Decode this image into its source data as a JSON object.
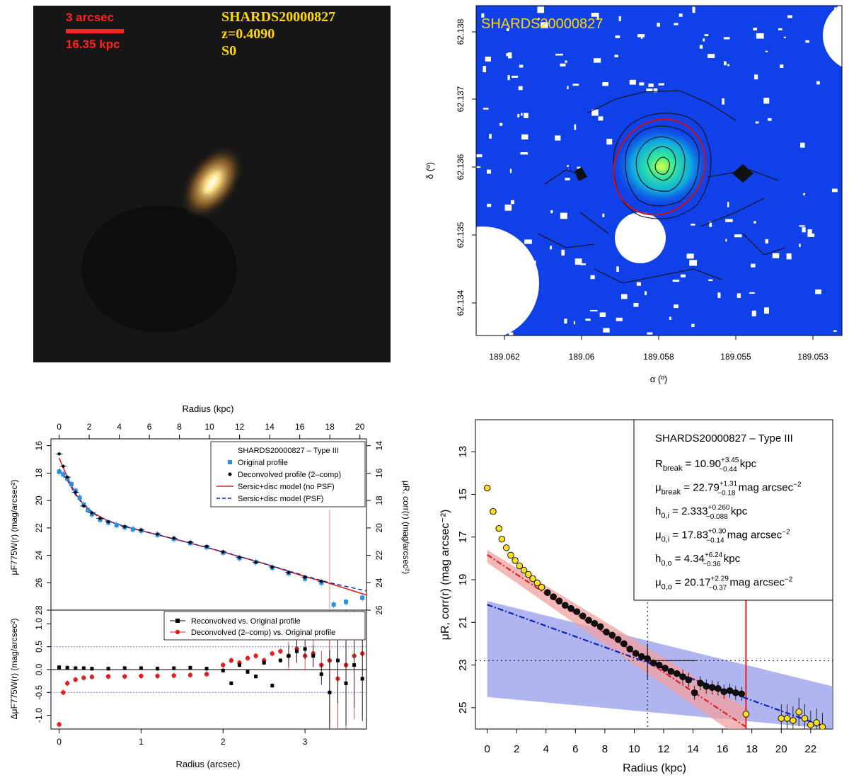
{
  "chart_data": [
    {
      "type": "image",
      "panel": "color-image",
      "scale_bar_label_1": "3 arcsec",
      "scale_bar_label_2": "16.35 kpc",
      "object_name": "SHARDS20000827",
      "redshift": "z=0.4090",
      "morph_type": "S0",
      "colors": {
        "background": "#141414",
        "scale": "#ff2020",
        "label": "#ffd700"
      }
    },
    {
      "type": "heatmap",
      "panel": "sky-map",
      "title": "SHARDS20000827",
      "xlabel": "α (º)",
      "ylabel": "δ (º)",
      "xticks": [
        "189.062",
        "189.06",
        "189.058",
        "189.055",
        "189.053"
      ],
      "yticks": [
        "62.138",
        "62.137",
        "62.136",
        "62.135",
        "62.134"
      ],
      "colors": {
        "background": "#1040e8",
        "ellipse": "#d01010"
      }
    },
    {
      "type": "scatter",
      "panel": "profile-residuals",
      "top_axis_label": "Radius (kpc)",
      "top_ticks": [
        "0",
        "2",
        "4",
        "6",
        "8",
        "10",
        "12",
        "14",
        "16",
        "18",
        "20"
      ],
      "xlabel": "Radius (arcsec)",
      "xticks": [
        "0",
        "1",
        "2",
        "3"
      ],
      "xlim": [
        -0.1,
        3.75
      ],
      "ylim_top": [
        28,
        15.5
      ],
      "ylim_bottom": [
        -1.3,
        1.3
      ],
      "ylabel_top": "μF775W(r) (mag/arcsec²)",
      "ylabel_right": "μR, corr(r) (mag/arcsec²)",
      "ylabel_bottom": "ΔμF775W(r) (mag/arcsec²)",
      "yticks_top": [
        "16",
        "18",
        "20",
        "22",
        "24",
        "26",
        "28"
      ],
      "yticks_right": [
        "14",
        "16",
        "18",
        "20",
        "22",
        "24",
        "26"
      ],
      "yticks_bottom": [
        "1.0",
        "0.5",
        "0.0",
        "-0.5",
        "-1.0"
      ],
      "legend_top": {
        "title": "SHARDS20000827  –  Type III",
        "items": [
          "Original profile",
          "Deconvolved profile (2–comp)",
          "Sersic+disc model (no PSF)",
          "Sersic+disc model (PSF)"
        ]
      },
      "legend_bottom": {
        "items": [
          "Reconvolved vs. Original profile",
          "Deconvolved (2–comp) vs. Original profile"
        ]
      },
      "break_radius_arcsec": 3.3,
      "series": [
        {
          "name": "Original profile",
          "x": [
            0,
            0.05,
            0.1,
            0.15,
            0.2,
            0.25,
            0.3,
            0.35,
            0.4,
            0.5,
            0.6,
            0.7,
            0.8,
            0.9,
            1.0,
            1.2,
            1.4,
            1.6,
            1.8,
            2.0,
            2.2,
            2.4,
            2.6,
            2.8,
            3.0,
            3.2,
            3.35,
            3.5,
            3.7
          ],
          "values": [
            17.9,
            18.1,
            18.4,
            18.8,
            19.3,
            19.8,
            20.3,
            20.7,
            21.0,
            21.4,
            21.6,
            21.8,
            21.95,
            22.1,
            22.2,
            22.5,
            22.8,
            23.1,
            23.4,
            23.8,
            24.2,
            24.5,
            24.9,
            25.3,
            25.7,
            26.0,
            27.6,
            27.4,
            27.1
          ]
        },
        {
          "name": "Deconvolved profile (2–comp)",
          "x": [
            0,
            0.05,
            0.1,
            0.2,
            0.3,
            0.4,
            0.5,
            0.6,
            0.8,
            1.0,
            1.2,
            1.4,
            1.6,
            1.8,
            2.0,
            2.2,
            2.4,
            2.6,
            2.8,
            3.0,
            3.2
          ],
          "values": [
            16.6,
            17.5,
            18.3,
            19.4,
            20.4,
            20.9,
            21.3,
            21.55,
            21.9,
            22.15,
            22.45,
            22.75,
            23.05,
            23.35,
            23.75,
            24.15,
            24.5,
            24.85,
            25.25,
            25.6,
            25.9
          ]
        },
        {
          "name": "Sersic+disc model (no PSF)",
          "x": [
            0,
            0.05,
            0.1,
            0.2,
            0.3,
            0.4,
            0.6,
            0.8,
            1.0,
            1.5,
            2.0,
            2.5,
            3.0,
            3.3,
            3.75
          ],
          "values": [
            16.9,
            17.6,
            18.3,
            19.5,
            20.3,
            20.85,
            21.5,
            21.9,
            22.2,
            22.95,
            23.75,
            24.6,
            25.55,
            26.05,
            26.9
          ]
        },
        {
          "name": "Sersic+disc model (PSF)",
          "x": [
            0,
            0.1,
            0.2,
            0.3,
            0.5,
            0.8,
            1.0,
            1.5,
            2.0,
            2.5,
            3.0,
            3.3,
            3.75
          ],
          "values": [
            17.7,
            18.5,
            19.6,
            20.35,
            21.3,
            21.9,
            22.2,
            22.95,
            23.75,
            24.6,
            25.5,
            26.0,
            26.6
          ]
        },
        {
          "name": "Reconvolved vs. Original profile",
          "x": [
            0,
            0.1,
            0.2,
            0.3,
            0.4,
            0.6,
            0.8,
            1.0,
            1.2,
            1.4,
            1.6,
            1.8,
            2.0,
            2.1,
            2.2,
            2.3,
            2.4,
            2.5,
            2.6,
            2.7,
            2.8,
            2.9,
            3.0,
            3.1,
            3.2,
            3.3,
            3.4,
            3.5,
            3.6,
            3.7
          ],
          "values": [
            0.05,
            0.04,
            0.03,
            0.03,
            0.02,
            0.02,
            0.03,
            0.03,
            0.02,
            0.03,
            0.04,
            0.02,
            -0.02,
            -0.3,
            0.1,
            -0.05,
            -0.15,
            0.15,
            -0.35,
            0.2,
            0.3,
            0.4,
            0.45,
            0.3,
            -0.1,
            -0.5,
            0.2,
            -0.3,
            0.1,
            -0.2
          ]
        },
        {
          "name": "Deconvolved (2–comp) vs. Original profile",
          "x": [
            0,
            0.05,
            0.1,
            0.2,
            0.3,
            0.4,
            0.6,
            0.8,
            1.0,
            1.2,
            1.4,
            1.6,
            1.8,
            2.0,
            2.1,
            2.2,
            2.3,
            2.4,
            2.5,
            2.6,
            2.7,
            2.8,
            2.9,
            3.0,
            3.1,
            3.2,
            3.3,
            3.4,
            3.5,
            3.6,
            3.7
          ],
          "values": [
            -1.2,
            -0.5,
            -0.3,
            -0.22,
            -0.18,
            -0.16,
            -0.15,
            -0.15,
            -0.14,
            -0.14,
            -0.13,
            -0.12,
            -0.1,
            0.1,
            0.2,
            0.15,
            0.25,
            0.3,
            0.2,
            0.35,
            0.4,
            0.3,
            0.45,
            0.3,
            0.35,
            0.1,
            0.2,
            -0.2,
            0.1,
            0.3,
            0.35
          ]
        }
      ]
    },
    {
      "type": "scatter",
      "panel": "fit-profile",
      "xlabel": "Radius (kpc)",
      "ylabel": "μR, corr(r) (mag arcsec⁻²)",
      "xticks": [
        "0",
        "2",
        "4",
        "6",
        "8",
        "10",
        "12",
        "14",
        "16",
        "18",
        "20",
        "22"
      ],
      "yticks": [
        "13",
        "15",
        "17",
        "19",
        "21",
        "23",
        "25"
      ],
      "xlim": [
        -0.8,
        23.5
      ],
      "ylim": [
        26,
        11.5
      ],
      "legend": {
        "title": "SHARDS20000827  –  Type III",
        "lines": [
          {
            "lhs": "R",
            "sub": "break",
            "val": " = 10.90",
            "sup": "+3.45",
            "low": "−0.44",
            "unit": " kpc"
          },
          {
            "lhs": "μ",
            "sub": "break",
            "val": " = 22.79",
            "sup": "+1.31",
            "low": "−0.18",
            "unit": " mag arcsec",
            "unit_sup": "−2"
          },
          {
            "lhs": "h",
            "sub": "0,i",
            "val": " = 2.333",
            "sup": "+0.260",
            "low": "−0.088",
            "unit": " kpc"
          },
          {
            "lhs": "μ",
            "sub": "0,i",
            "val": " = 17.83",
            "sup": "+0.30",
            "low": "−0.14",
            "unit": " mag arcsec",
            "unit_sup": "−2"
          },
          {
            "lhs": "h",
            "sub": "0,o",
            "val": " = 4.34",
            "sup": "+6.24",
            "low": "−0.36",
            "unit": " kpc"
          },
          {
            "lhs": "μ",
            "sub": "0,o",
            "val": " = 20.17",
            "sup": "+2.29",
            "low": "−0.37",
            "unit": " mag arcsec",
            "unit_sup": "−2"
          }
        ]
      },
      "break_radius": 10.9,
      "break_mu": 22.79,
      "outer_limit": 17.6,
      "series": [
        {
          "name": "inner disc fit",
          "x": [
            0,
            17.6
          ],
          "values": [
            17.83,
            25.9
          ]
        },
        {
          "name": "outer disc fit",
          "x": [
            0,
            23
          ],
          "values": [
            20.17,
            25.9
          ]
        },
        {
          "name": "excluded points",
          "x": [
            0,
            0.4,
            0.8,
            1.0,
            1.3,
            1.6,
            1.9,
            2.2,
            2.5,
            2.8,
            3.1,
            3.4,
            3.7,
            17.6,
            20.0,
            20.4,
            20.8,
            21.2,
            21.6,
            22.0,
            22.4,
            22.8
          ],
          "values": [
            14.7,
            15.8,
            16.6,
            17.1,
            17.5,
            17.85,
            18.1,
            18.35,
            18.55,
            18.75,
            18.95,
            19.15,
            19.35,
            25.3,
            25.5,
            25.5,
            25.6,
            25.2,
            25.5,
            25.8,
            25.7,
            25.9
          ]
        },
        {
          "name": "fitted points",
          "x": [
            4.1,
            4.5,
            4.9,
            5.3,
            5.7,
            6.1,
            6.5,
            6.9,
            7.3,
            7.7,
            8.1,
            8.5,
            8.9,
            9.3,
            9.7,
            10.1,
            10.5,
            10.9,
            11.3,
            11.7,
            12.1,
            12.5,
            12.9,
            13.3,
            13.7,
            14.1,
            14.5,
            14.9,
            15.3,
            15.7,
            16.1,
            16.5,
            16.9,
            17.3
          ],
          "values": [
            19.6,
            19.8,
            20.0,
            20.2,
            20.35,
            20.5,
            20.7,
            20.9,
            21.05,
            21.2,
            21.45,
            21.6,
            21.8,
            22.0,
            22.25,
            22.45,
            22.6,
            22.7,
            22.9,
            23.0,
            23.15,
            23.3,
            23.4,
            23.55,
            23.7,
            24.3,
            23.85,
            24.0,
            24.05,
            24.1,
            24.25,
            24.2,
            24.3,
            24.35
          ]
        }
      ]
    }
  ]
}
